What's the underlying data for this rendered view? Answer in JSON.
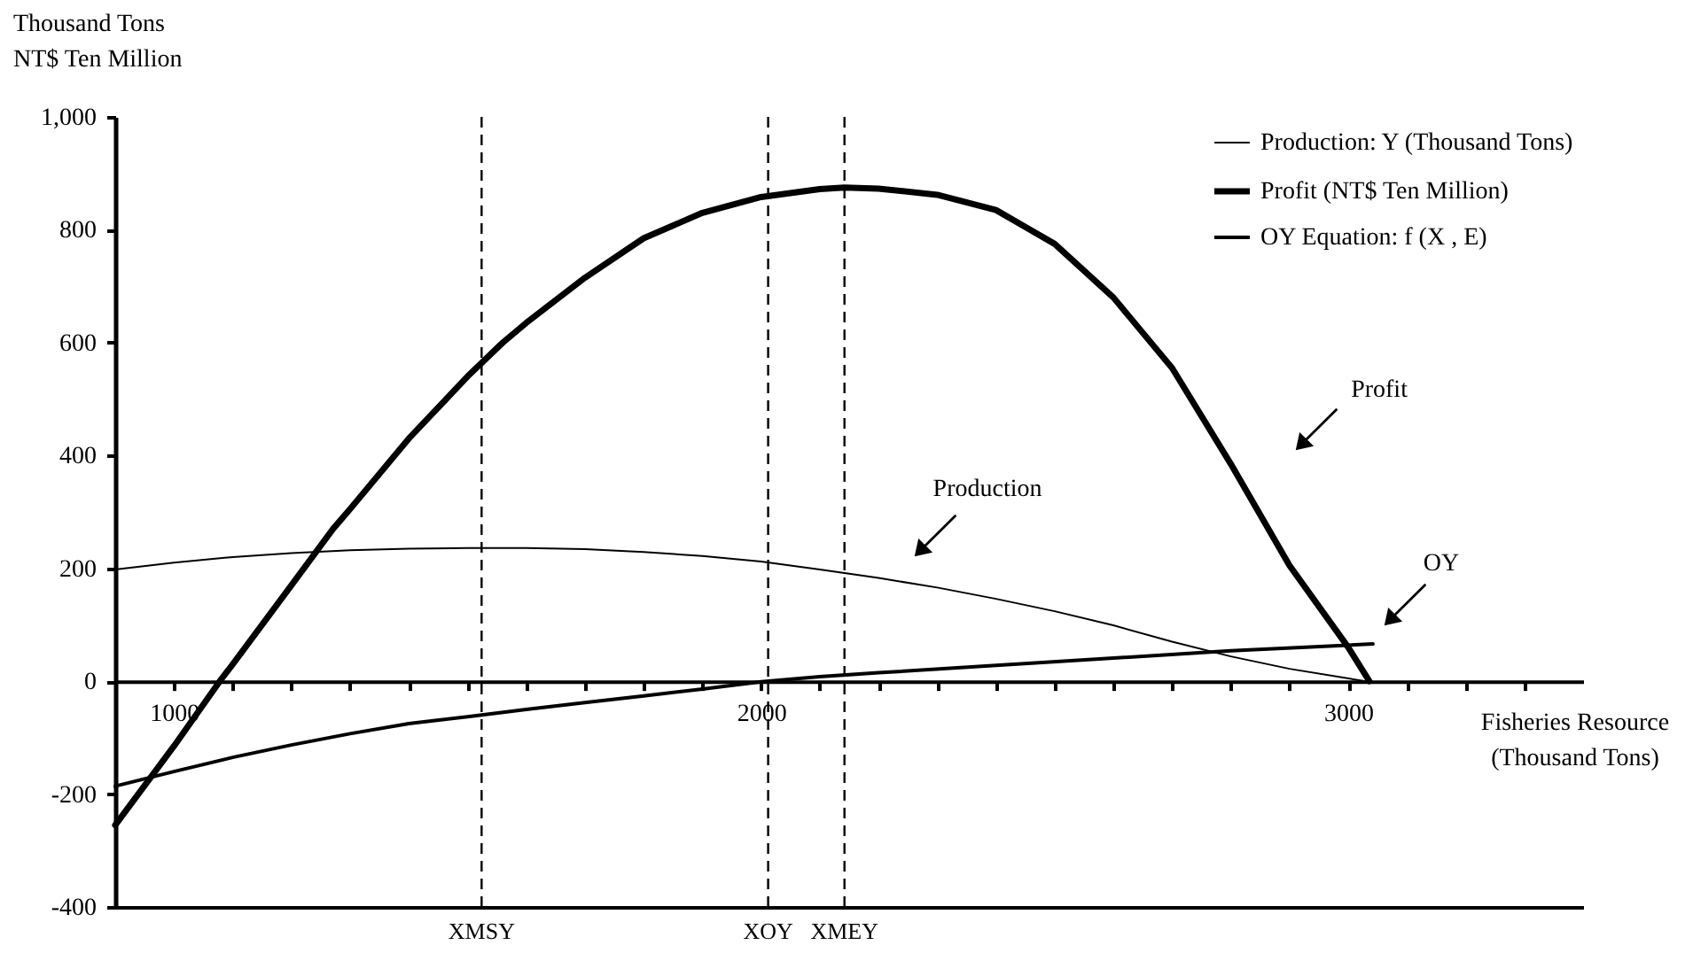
{
  "chart_data": {
    "type": "line",
    "xlabel": "Fisheries Resource\n(Thousand Tons)",
    "ylabel": "Thousand Tons\nNT$ Ten Million",
    "xlim": [
      900,
      3400
    ],
    "xticks": [
      1000,
      {
        "value": 1100,
        "label": null
      },
      {
        "value": 1200,
        "label": null
      },
      {
        "value": 1300,
        "label": null
      },
      {
        "value": 1400,
        "label": null
      },
      {
        "value": 1500,
        "label": null
      },
      {
        "value": 1600,
        "label": null
      },
      {
        "value": 1700,
        "label": null
      },
      {
        "value": 1800,
        "label": null
      },
      {
        "value": 1900,
        "label": null
      },
      2000,
      {
        "value": 2100,
        "label": null
      },
      {
        "value": 2200,
        "label": null
      },
      {
        "value": 2300,
        "label": null
      },
      {
        "value": 2400,
        "label": null
      },
      {
        "value": 2500,
        "label": null
      },
      {
        "value": 2600,
        "label": null
      },
      {
        "value": 2700,
        "label": null
      },
      {
        "value": 2800,
        "label": null
      },
      {
        "value": 2900,
        "label": null
      },
      3000,
      {
        "value": 3100,
        "label": null
      },
      {
        "value": 3200,
        "label": null
      },
      {
        "value": 3300,
        "label": null
      }
    ],
    "ylim": [
      -400,
      1000
    ],
    "yticks": [
      -400,
      -200,
      0,
      200,
      400,
      600,
      800,
      {
        "value": 1000,
        "label": "1,000"
      }
    ],
    "series": [
      {
        "name": "Production: Y (Thousand Tons)",
        "color": "#000000",
        "x": [
          900,
          1000,
          1100,
          1200,
          1300,
          1400,
          1500,
          1600,
          1700,
          1800,
          1900,
          2000,
          2100,
          2200,
          2300,
          2400,
          2500,
          2600,
          2700,
          2800,
          2900,
          3030
        ],
        "values": [
          198,
          210,
          220,
          227,
          232,
          235,
          236,
          236,
          234,
          229,
          222,
          212,
          198,
          183,
          166,
          146,
          124,
          99,
          70,
          44,
          22,
          0
        ]
      },
      {
        "name": "Profit (NT$ Ten Million)",
        "color": "#000000",
        "x": [
          900,
          1000,
          1078,
          1100,
          1200,
          1271,
          1300,
          1400,
          1500,
          1560,
          1600,
          1700,
          1800,
          1900,
          2000,
          2100,
          2142,
          2200,
          2300,
          2400,
          2500,
          2600,
          2700,
          2800,
          2900,
          3000,
          3036
        ],
        "values": [
          -255,
          -115,
          0,
          30,
          170,
          270,
          305,
          430,
          540,
          600,
          635,
          715,
          785,
          830,
          858,
          872,
          875,
          873,
          862,
          835,
          775,
          680,
          555,
          385,
          205,
          60,
          0
        ]
      },
      {
        "name": "OY Equation: f (X , E)",
        "color": "#000000",
        "x": [
          900,
          1000,
          1100,
          1200,
          1300,
          1400,
          1500,
          1600,
          1700,
          1800,
          1900,
          2000,
          2100,
          2200,
          2400,
          2600,
          2800,
          3042
        ],
        "values": [
          -186,
          -160,
          -135,
          -113,
          -93,
          -75,
          -63,
          -50,
          -38,
          -26,
          -14,
          -1,
          8,
          15,
          28,
          41,
          54,
          66
        ]
      }
    ],
    "ref_lines": [
      {
        "axis": "x",
        "value": 1524,
        "label": "XMSY",
        "line_style": "dashed"
      },
      {
        "axis": "x",
        "value": 2012,
        "label": "XOY",
        "line_style": "dashed"
      },
      {
        "axis": "x",
        "value": 2142,
        "label": "XMEY",
        "line_style": "dashed"
      }
    ],
    "annotations": [
      "Production",
      "Profit",
      "OY"
    ],
    "legend": "top right",
    "grid": false,
    "marker": "none",
    "line_style": "solid"
  }
}
